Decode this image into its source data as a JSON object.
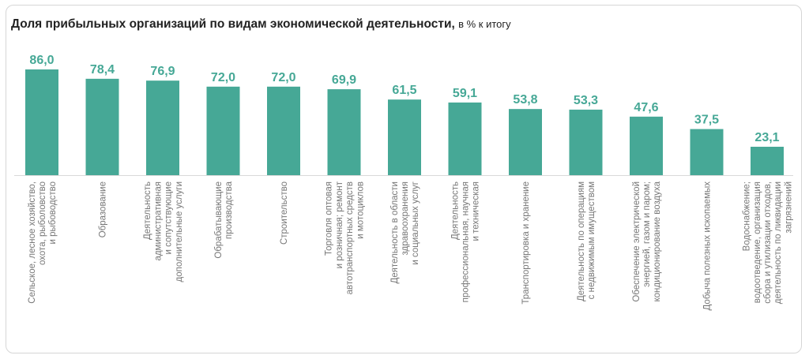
{
  "chart_data": {
    "type": "bar",
    "title": "Доля прибыльных организаций по видам экономической деятельности,",
    "subtitle": "в % к итогу",
    "bar_color": "#46a896",
    "label_color": "#777777",
    "grid": false,
    "categories": [
      [
        "Сельское, лесное хозяйство,",
        "охота, рыболовство",
        "и рыбоводство"
      ],
      [
        "Образование"
      ],
      [
        "Деятельность",
        "административная",
        "и сопутствующие",
        "дополнительные услуги"
      ],
      [
        "Обрабатывающие",
        "производства"
      ],
      [
        "Строительство"
      ],
      [
        "Торговля оптовая",
        "и розничная; ремонт",
        "автотранспортных средств",
        "и мотоциклов"
      ],
      [
        "Деятельность в области",
        "здравоохранения",
        "и социальных услуг"
      ],
      [
        "Деятельность",
        "профессиональная, научная",
        "и техническая"
      ],
      [
        "Транспортировка и хранение"
      ],
      [
        "Деятельность по операциям",
        "с недвижимым имуществом"
      ],
      [
        "Обеспечение электрической",
        "энергией, газом и паром;",
        "кондиционирование воздуха"
      ],
      [
        "Добыча полезных ископаемых"
      ],
      [
        "Водоснабжение;",
        "водоотведение, организация",
        "сбора и утилизации отходов,",
        "деятельность по ликвидации",
        "загрязнений"
      ]
    ],
    "values": [
      86.0,
      78.4,
      76.9,
      72.0,
      72.0,
      69.9,
      61.5,
      59.1,
      53.8,
      53.3,
      47.6,
      37.5,
      23.1
    ],
    "value_labels": [
      "86,0",
      "78,4",
      "76,9",
      "72,0",
      "72,0",
      "69,9",
      "61,5",
      "59,1",
      "53,8",
      "53,3",
      "47,6",
      "37,5",
      "23,1"
    ],
    "ylim": [
      0,
      86
    ]
  }
}
